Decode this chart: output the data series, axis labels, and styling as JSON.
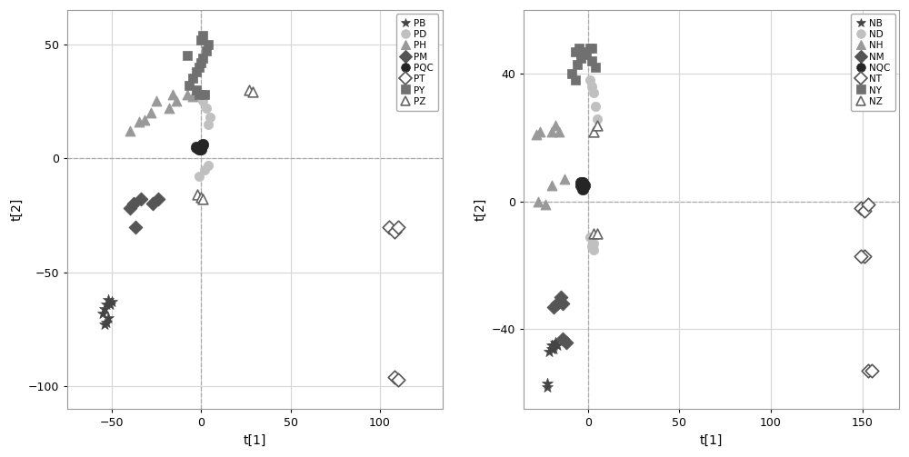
{
  "plot1": {
    "xlabel": "t[1]",
    "ylabel": "t[2]",
    "xlim": [
      -75,
      135
    ],
    "ylim": [
      -110,
      65
    ],
    "xticks": [
      -50,
      0,
      50,
      100
    ],
    "yticks": [
      -100,
      -50,
      0,
      50
    ],
    "series": [
      {
        "label": "PB",
        "marker": "*",
        "color": "#444444",
        "edgecolor": "#444444",
        "open": false,
        "points": [
          [
            -52,
            -62
          ],
          [
            -53,
            -64
          ],
          [
            -54,
            -66
          ],
          [
            -55,
            -68
          ],
          [
            -51,
            -64
          ],
          [
            -52,
            -70
          ],
          [
            -50,
            -63
          ],
          [
            -53,
            -72
          ],
          [
            -54,
            -73
          ]
        ]
      },
      {
        "label": "PD",
        "marker": "o",
        "color": "#c0c0c0",
        "edgecolor": "#c0c0c0",
        "open": false,
        "points": [
          [
            -1,
            -8
          ],
          [
            2,
            -5
          ],
          [
            4,
            -3
          ],
          [
            4,
            15
          ],
          [
            5,
            18
          ],
          [
            3,
            22
          ],
          [
            2,
            28
          ],
          [
            1,
            25
          ]
        ]
      },
      {
        "label": "PH",
        "marker": "^",
        "color": "#999999",
        "edgecolor": "#999999",
        "open": false,
        "points": [
          [
            -32,
            17
          ],
          [
            -28,
            20
          ],
          [
            -35,
            16
          ],
          [
            -18,
            22
          ],
          [
            -14,
            25
          ],
          [
            -16,
            28
          ],
          [
            -8,
            28
          ],
          [
            -5,
            27
          ],
          [
            -25,
            25
          ],
          [
            -40,
            12
          ]
        ]
      },
      {
        "label": "PM",
        "marker": "D",
        "color": "#555555",
        "edgecolor": "#555555",
        "open": false,
        "points": [
          [
            -38,
            -20
          ],
          [
            -34,
            -18
          ],
          [
            -40,
            -22
          ],
          [
            -37,
            -30
          ],
          [
            -24,
            -18
          ],
          [
            -27,
            -20
          ]
        ]
      },
      {
        "label": "PQC",
        "marker": "o",
        "color": "#252525",
        "edgecolor": "#252525",
        "open": false,
        "points": [
          [
            -3,
            5
          ],
          [
            0,
            5
          ],
          [
            1,
            6
          ],
          [
            0,
            4
          ],
          [
            -1,
            4
          ]
        ]
      },
      {
        "label": "PT",
        "marker": "D",
        "color": "#ffffff",
        "edgecolor": "#555555",
        "open": true,
        "points": [
          [
            105,
            -30
          ],
          [
            108,
            -32
          ],
          [
            110,
            -30
          ],
          [
            108,
            -96
          ],
          [
            110,
            -97
          ]
        ]
      },
      {
        "label": "PY",
        "marker": "s",
        "color": "#707070",
        "edgecolor": "#707070",
        "open": false,
        "points": [
          [
            -5,
            35
          ],
          [
            -3,
            38
          ],
          [
            -1,
            40
          ],
          [
            0,
            42
          ],
          [
            1,
            44
          ],
          [
            3,
            47
          ],
          [
            4,
            50
          ],
          [
            -7,
            32
          ],
          [
            -3,
            30
          ],
          [
            -1,
            28
          ],
          [
            2,
            28
          ],
          [
            -8,
            45
          ],
          [
            0,
            52
          ],
          [
            1,
            54
          ]
        ]
      },
      {
        "label": "PZ",
        "marker": "^",
        "color": "#ffffff",
        "edgecolor": "#666666",
        "open": true,
        "points": [
          [
            -2,
            -16
          ],
          [
            0,
            -17
          ],
          [
            1,
            -18
          ],
          [
            27,
            30
          ],
          [
            29,
            29
          ]
        ]
      }
    ]
  },
  "plot2": {
    "xlabel": "t[1]",
    "ylabel": "t[2]",
    "xlim": [
      -35,
      170
    ],
    "ylim": [
      -65,
      60
    ],
    "xticks": [
      0,
      50,
      100,
      150
    ],
    "yticks": [
      -40,
      0,
      40
    ],
    "series": [
      {
        "label": "NB",
        "marker": "*",
        "color": "#444444",
        "edgecolor": "#444444",
        "open": false,
        "points": [
          [
            -18,
            -44
          ],
          [
            -19,
            -45
          ],
          [
            -20,
            -46
          ],
          [
            -21,
            -47
          ],
          [
            -19,
            -46
          ],
          [
            -20,
            -45
          ],
          [
            -17,
            -45
          ],
          [
            -22,
            -57
          ],
          [
            -22,
            -58
          ]
        ]
      },
      {
        "label": "ND",
        "marker": "o",
        "color": "#c0c0c0",
        "edgecolor": "#c0c0c0",
        "open": false,
        "points": [
          [
            1,
            38
          ],
          [
            2,
            36
          ],
          [
            3,
            34
          ],
          [
            4,
            30
          ],
          [
            5,
            26
          ],
          [
            1,
            -11
          ],
          [
            3,
            -13
          ],
          [
            2,
            -14
          ],
          [
            3,
            -15
          ]
        ]
      },
      {
        "label": "NH",
        "marker": "^",
        "color": "#999999",
        "edgecolor": "#999999",
        "open": false,
        "points": [
          [
            -20,
            22
          ],
          [
            -18,
            24
          ],
          [
            -16,
            22
          ],
          [
            -27,
            0
          ],
          [
            -23,
            -1
          ],
          [
            -20,
            5
          ],
          [
            -13,
            7
          ],
          [
            -28,
            21
          ],
          [
            -26,
            22
          ]
        ]
      },
      {
        "label": "NM",
        "marker": "D",
        "color": "#555555",
        "edgecolor": "#555555",
        "open": false,
        "points": [
          [
            -17,
            -32
          ],
          [
            -15,
            -30
          ],
          [
            -19,
            -33
          ],
          [
            -14,
            -32
          ],
          [
            -12,
            -44
          ],
          [
            -14,
            -43
          ]
        ]
      },
      {
        "label": "NQC",
        "marker": "o",
        "color": "#252525",
        "edgecolor": "#252525",
        "open": false,
        "points": [
          [
            -4,
            5
          ],
          [
            -2,
            5
          ],
          [
            -3,
            4
          ],
          [
            -4,
            6
          ],
          [
            -3,
            6
          ]
        ]
      },
      {
        "label": "NT",
        "marker": "D",
        "color": "#ffffff",
        "edgecolor": "#555555",
        "open": true,
        "points": [
          [
            149,
            -2
          ],
          [
            151,
            -3
          ],
          [
            153,
            -1
          ],
          [
            151,
            -17
          ],
          [
            149,
            -17
          ],
          [
            153,
            -53
          ],
          [
            155,
            -53
          ]
        ]
      },
      {
        "label": "NY",
        "marker": "s",
        "color": "#707070",
        "edgecolor": "#707070",
        "open": false,
        "points": [
          [
            -6,
            43
          ],
          [
            -4,
            45
          ],
          [
            -2,
            46
          ],
          [
            -1,
            47
          ],
          [
            1,
            48
          ],
          [
            2,
            48
          ],
          [
            -9,
            40
          ],
          [
            -7,
            38
          ],
          [
            2,
            44
          ],
          [
            4,
            42
          ],
          [
            -4,
            46
          ],
          [
            -7,
            47
          ],
          [
            -5,
            48
          ]
        ]
      },
      {
        "label": "NZ",
        "marker": "^",
        "color": "#ffffff",
        "edgecolor": "#666666",
        "open": true,
        "points": [
          [
            3,
            22
          ],
          [
            5,
            24
          ],
          [
            3,
            -10
          ],
          [
            5,
            -10
          ]
        ]
      }
    ]
  },
  "background_color": "#ffffff",
  "grid_color": "#d5d5d5",
  "dash_color": "#aaaaaa"
}
